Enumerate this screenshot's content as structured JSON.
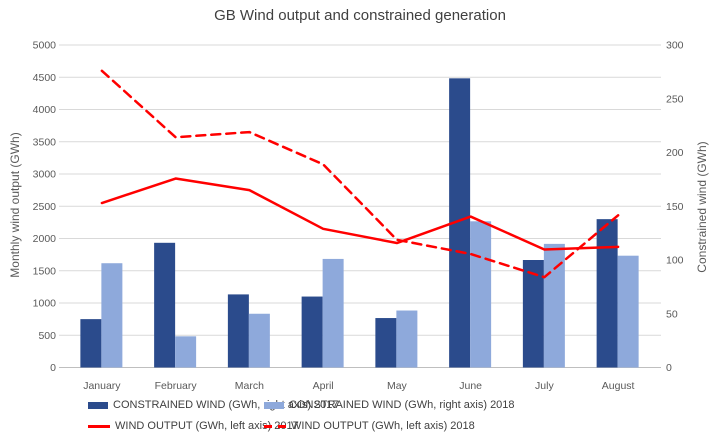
{
  "title": "GB Wind output and constrained generation",
  "colors": {
    "bar_2017": "#2B4B8C",
    "bar_2018": "#8EA9DB",
    "line_red": "#FF0000",
    "gridline": "#D9D9D9",
    "axis_line": "#BFBFBF",
    "text": "#595959"
  },
  "chart_data": {
    "type": "bar",
    "subtype": "combo-bar-line-dual-axis",
    "title": "GB Wind output and constrained generation",
    "categories": [
      "January",
      "February",
      "March",
      "April",
      "May",
      "June",
      "July",
      "August"
    ],
    "series": [
      {
        "name": "CONSTRAINED WIND (GWh, right axis) 2017",
        "type": "bar",
        "axis": "right",
        "color": "#2B4B8C",
        "values": [
          45,
          116,
          68,
          66,
          46,
          269,
          100,
          138
        ]
      },
      {
        "name": "CONSTRAINED WIND (GWh, right axis) 2018",
        "type": "bar",
        "axis": "right",
        "color": "#8EA9DB",
        "values": [
          97,
          29,
          50,
          101,
          53,
          136,
          115,
          104
        ]
      },
      {
        "name": "WIND OUTPUT (GWh, left axis) 2017",
        "type": "line",
        "style": "solid",
        "axis": "left",
        "color": "#FF0000",
        "values": [
          2550,
          2930,
          2750,
          2150,
          1930,
          2340,
          1830,
          1870
        ]
      },
      {
        "name": "WIND OUTPUT (GWh, left axis) 2018",
        "type": "line",
        "style": "dashed",
        "axis": "left",
        "color": "#FF0000",
        "values": [
          4600,
          3570,
          3650,
          3150,
          1980,
          1760,
          1400,
          2360
        ]
      }
    ],
    "left_axis": {
      "label": "Monthly wind output (GWh)",
      "min": 0,
      "max": 5000,
      "step": 500
    },
    "right_axis": {
      "label": "Constrained wind (GWh)",
      "min": 0,
      "max": 300,
      "step": 50
    },
    "grid": true,
    "legend_position": "bottom"
  }
}
